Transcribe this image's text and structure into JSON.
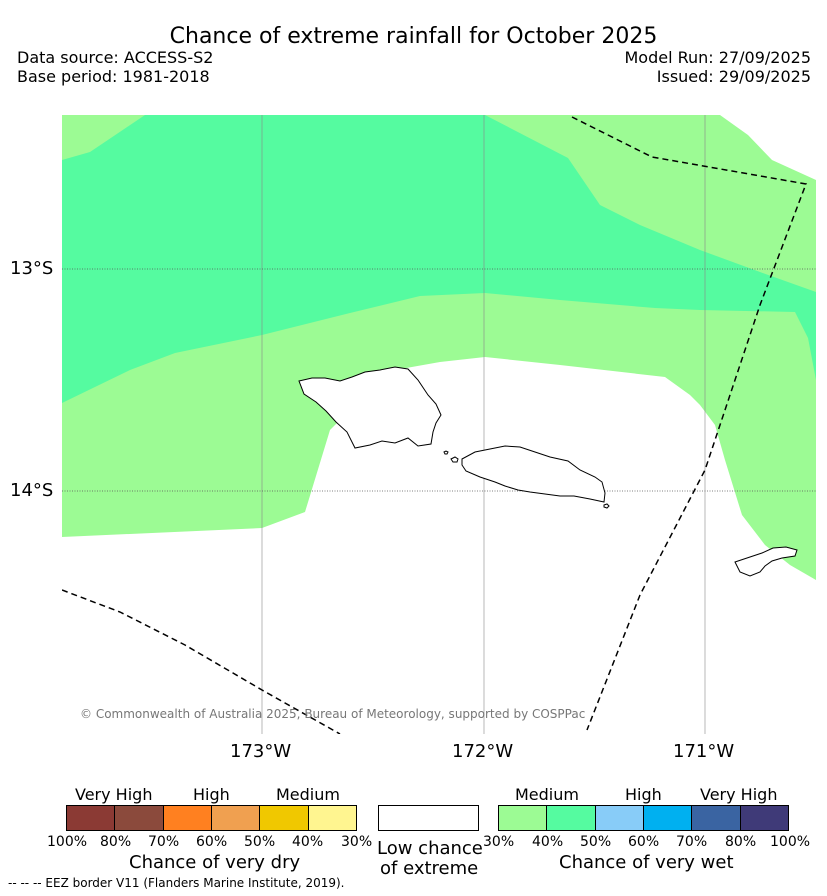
{
  "title": "Chance of extreme rainfall for October 2025",
  "data_source": "Data source: ACCESS-S2",
  "base_period": "Base period: 1981-2018",
  "model_run": "Model Run: 27/09/2025",
  "issued": "Issued: 29/09/2025",
  "lat_labels": [
    "13°S",
    "14°S"
  ],
  "lon_labels": [
    "173°W",
    "172°W",
    "171°W"
  ],
  "copyright": "© Commonwealth of Australia 2025, Bureau of Meteorology, supported by COSPPac",
  "dry_legend": {
    "categories": [
      "Very High",
      "High",
      "Medium"
    ],
    "percents": [
      "100%",
      "80%",
      "70%",
      "60%",
      "50%",
      "40%",
      "30%"
    ],
    "title": "Chance of very dry",
    "colors": [
      "#8b3a34",
      "#8b4a3c",
      "#ff8020",
      "#f0a050",
      "#f0c800",
      "#fff590"
    ]
  },
  "low_legend": {
    "line1": "Low chance",
    "line2": "of extreme",
    "color": "#ffffff"
  },
  "wet_legend": {
    "categories": [
      "Medium",
      "High",
      "Very High"
    ],
    "percents": [
      "30%",
      "40%",
      "50%",
      "60%",
      "70%",
      "80%",
      "100%"
    ],
    "title": "Chance of very wet",
    "colors": [
      "#9cfb94",
      "#55fba0",
      "#88ccf8",
      "#00b0f0",
      "#3a64a2",
      "#3f3a78"
    ]
  },
  "footer": "-- -- -- EEZ border V11 (Flanders Marine Institute, 2019)."
}
